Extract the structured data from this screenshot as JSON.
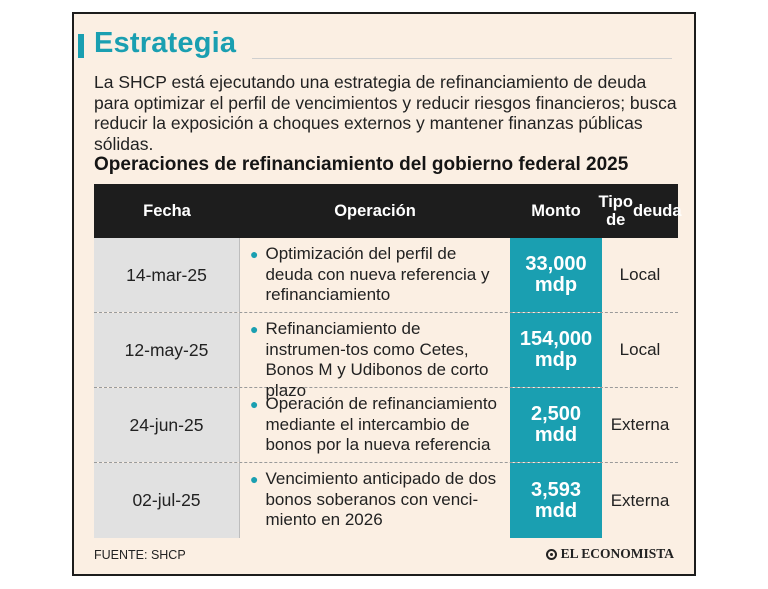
{
  "header": {
    "title": "Estrategia",
    "intro": "La SHCP está ejecutando una estrategia de refinanciamiento de deuda para optimizar el perfil de vencimientos y reducir riesgos financieros; busca reducir la exposición a choques externos y mantener finanzas públicas sólidas."
  },
  "table": {
    "title": "Operaciones de refinanciamiento del gobierno federal 2025",
    "columns": {
      "fecha": "Fecha",
      "operacion": "Operación",
      "monto": "Monto",
      "tipo_line1": "Tipo de",
      "tipo_line2": "deuda"
    },
    "rows": [
      {
        "fecha": "14-mar-25",
        "operacion": "Optimización del perfil de deuda con nueva referencia y refinanciamiento",
        "monto_value": "33,000",
        "monto_unit": "mdp",
        "tipo": "Local"
      },
      {
        "fecha": "12-may-25",
        "operacion": "Refinanciamiento de instrumen-tos como Cetes, Bonos M y Udibonos de corto plazo",
        "monto_value": "154,000",
        "monto_unit": "mdp",
        "tipo": "Local"
      },
      {
        "fecha": "24-jun-25",
        "operacion": "Operación de refinanciamiento mediante el intercambio de bonos por la nueva referencia",
        "monto_value": "2,500",
        "monto_unit": "mdd",
        "tipo": "Externa"
      },
      {
        "fecha": "02-jul-25",
        "operacion": "Vencimiento anticipado de dos bonos soberanos con venci-miento en 2026",
        "monto_value": "3,593",
        "monto_unit": "mdd",
        "tipo": "Externa"
      }
    ]
  },
  "footer": {
    "source": "FUENTE: SHCP",
    "brand": "EL ECONOMISTA"
  },
  "colors": {
    "accent": "#1a9fb1",
    "background": "#fbefe3",
    "header_bg": "#1d1d1d",
    "date_cell_bg": "#e1e1e1"
  }
}
